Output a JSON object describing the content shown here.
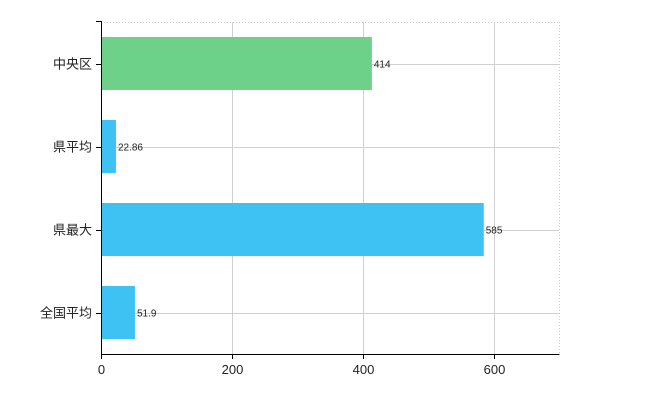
{
  "chart_data": {
    "type": "bar",
    "orientation": "horizontal",
    "categories": [
      "中央区",
      "県平均",
      "県最大",
      "全国平均"
    ],
    "values": [
      414,
      22.86,
      585,
      51.9
    ],
    "value_labels": [
      "414",
      "22.86",
      "585",
      "51.9"
    ],
    "bar_colors": [
      "#6dd18a",
      "#3ec1f3",
      "#3ec1f3",
      "#3ec1f3"
    ],
    "xlim": [
      0,
      700
    ],
    "xticks": [
      0,
      200,
      400,
      600
    ],
    "xtick_labels": [
      "0",
      "200",
      "400",
      "600"
    ],
    "grid": true,
    "title": "",
    "xlabel": "",
    "ylabel": ""
  }
}
